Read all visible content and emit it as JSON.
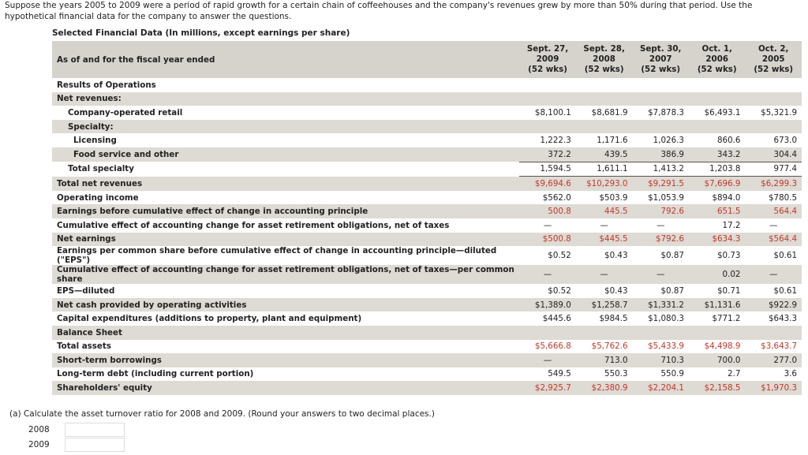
{
  "intro": "Suppose the years 2005 to 2009 were a period of rapid growth for a certain chain of coffeehouses and the company's revenues grew by more than 50% during that period. Use the hypothetical financial data for the company to answer the questions.",
  "table": {
    "title": "Selected Financial Data (In millions, except earnings per share)",
    "header": {
      "label": "As of and for the fiscal year ended",
      "columns": [
        {
          "date": "Sept. 27,",
          "year": "2009",
          "weeks": "(52 wks)"
        },
        {
          "date": "Sept. 28,",
          "year": "2008",
          "weeks": "(52 wks)"
        },
        {
          "date": "Sept. 30,",
          "year": "2007",
          "weeks": "(52 wks)"
        },
        {
          "date": "Oct. 1,",
          "year": "2006",
          "weeks": "(52 wks)"
        },
        {
          "date": "Oct. 2,",
          "year": "2005",
          "weeks": "(52 wks)"
        }
      ]
    },
    "rows": [
      {
        "label": "Results of Operations"
      },
      {
        "label": "Net revenues:"
      },
      {
        "label": "Company-operated retail",
        "values": [
          "$8,100.1",
          "$8,681.9",
          "$7,878.3",
          "$6,493.1",
          "$5,321.9"
        ]
      },
      {
        "label": "Specialty:"
      },
      {
        "label": "Licensing",
        "values": [
          "1,222.3",
          "1,171.6",
          "1,026.3",
          "860.6",
          "673.0"
        ]
      },
      {
        "label": "Food service and other",
        "values": [
          "372.2",
          "439.5",
          "386.9",
          "343.2",
          "304.4"
        ]
      },
      {
        "label": "Total specialty",
        "values": [
          "1,594.5",
          "1,611.1",
          "1,413.2",
          "1,203.8",
          "977.4"
        ]
      },
      {
        "label": "Total net revenues",
        "values": [
          "$9,694.6",
          "$10,293.0",
          "$9,291.5",
          "$7,696.9",
          "$6,299.3"
        ]
      },
      {
        "label": "Operating income",
        "values": [
          "$562.0",
          "$503.9",
          "$1,053.9",
          "$894.0",
          "$780.5"
        ]
      },
      {
        "label": "Earnings before cumulative effect of change in accounting principle",
        "values": [
          "500.8",
          "445.5",
          "792.6",
          "651.5",
          "564.4"
        ]
      },
      {
        "label": "Cumulative effect of accounting change for asset retirement obligations, net of taxes",
        "values": [
          "—",
          "—",
          "—",
          "17.2",
          "—"
        ]
      },
      {
        "label": "Net earnings",
        "values": [
          "$500.8",
          "$445.5",
          "$792.6",
          "$634.3",
          "$564.4"
        ]
      },
      {
        "label": "Earnings per common share before cumulative effect of change in accounting principle—diluted (\"EPS\")",
        "values": [
          "$0.52",
          "$0.43",
          "$0.87",
          "$0.73",
          "$0.61"
        ]
      },
      {
        "label": "Cumulative effect of accounting change for asset retirement obligations, net of taxes—per common share",
        "values": [
          "—",
          "—",
          "—",
          "0.02",
          "—"
        ]
      },
      {
        "label": "EPS—diluted",
        "values": [
          "$0.52",
          "$0.43",
          "$0.87",
          "$0.71",
          "$0.61"
        ]
      },
      {
        "label": "Net cash provided by operating activities",
        "values": [
          "$1,389.0",
          "$1,258.7",
          "$1,331.2",
          "$1,131.6",
          "$922.9"
        ]
      },
      {
        "label": "Capital expenditures (additions to property, plant and equipment)",
        "values": [
          "$445.6",
          "$984.5",
          "$1,080.3",
          "$771.2",
          "$643.3"
        ]
      },
      {
        "label": "Balance Sheet"
      },
      {
        "label": "Total assets",
        "values": [
          "$5,666.8",
          "$5,762.6",
          "$5,433.9",
          "$4,498.9",
          "$3,643.7"
        ]
      },
      {
        "label": "Short-term borrowings",
        "values": [
          "—",
          "713.0",
          "710.3",
          "700.0",
          "277.0"
        ]
      },
      {
        "label": "Long-term debt (including current portion)",
        "values": [
          "549.5",
          "550.3",
          "550.9",
          "2.7",
          "3.6"
        ]
      },
      {
        "label": "Shareholders' equity",
        "values": [
          "$2,925.7",
          "$2,380.9",
          "$2,204.1",
          "$2,158.5",
          "$1,970.3"
        ]
      }
    ]
  },
  "question": {
    "text": "(a) Calculate the asset turnover ratio for 2008 and 2009. (Round your answers to two decimal places.)",
    "answers": [
      "2008",
      "2009"
    ]
  }
}
